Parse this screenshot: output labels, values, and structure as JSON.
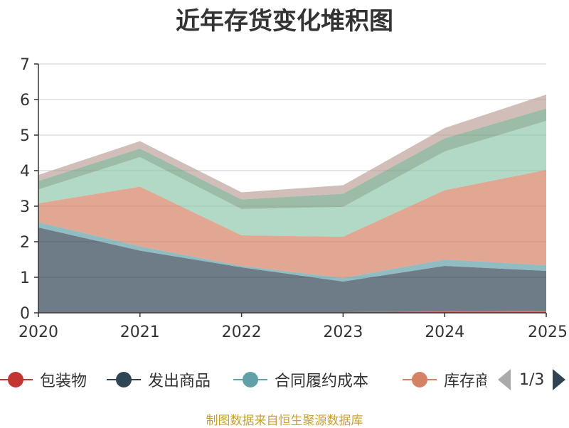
{
  "chart_data": {
    "type": "area",
    "stacked": true,
    "title": "近年存货变化堆积图",
    "x": [
      "2020",
      "2021",
      "2022",
      "2023",
      "2024",
      "2025"
    ],
    "ylim": [
      0,
      7
    ],
    "yticks": [
      0,
      1,
      2,
      3,
      4,
      5,
      6,
      7
    ],
    "grid": true,
    "legend_position": "bottom",
    "series": [
      {
        "name": "包装物",
        "color": "#c23531",
        "values": [
          0.02,
          0.02,
          0.02,
          0.02,
          0.04,
          0.06
        ]
      },
      {
        "name": "发出商品",
        "color": "#2f4554",
        "values": [
          2.38,
          1.73,
          1.26,
          0.86,
          1.28,
          1.12
        ]
      },
      {
        "name": "合同履约成本",
        "color": "#61a0a8",
        "values": [
          0.15,
          0.12,
          0.04,
          0.1,
          0.18,
          0.16
        ]
      },
      {
        "name": "库存商品",
        "color": "#d48265",
        "values": [
          0.53,
          1.68,
          0.86,
          1.16,
          1.95,
          2.68
        ]
      },
      {
        "name": "",
        "color": "#91c7ae",
        "values": [
          0.39,
          0.83,
          0.74,
          0.84,
          1.09,
          1.38
        ]
      },
      {
        "name": "",
        "color": "#749f83",
        "values": [
          0.24,
          0.24,
          0.27,
          0.37,
          0.37,
          0.35
        ]
      },
      {
        "name": "",
        "color": "#ca8622",
        "values": [
          0.0,
          0.0,
          0.0,
          0.0,
          0.0,
          0.0
        ]
      },
      {
        "name": "",
        "color": "#bda29a",
        "values": [
          0.17,
          0.21,
          0.2,
          0.24,
          0.29,
          0.39
        ]
      }
    ]
  },
  "legend": {
    "visible_items": [
      "包装物",
      "发出商品",
      "合同履约成本",
      "库存商"
    ],
    "page_indicator": "1/3"
  },
  "source_note": "制图数据来自恒生聚源数据库"
}
